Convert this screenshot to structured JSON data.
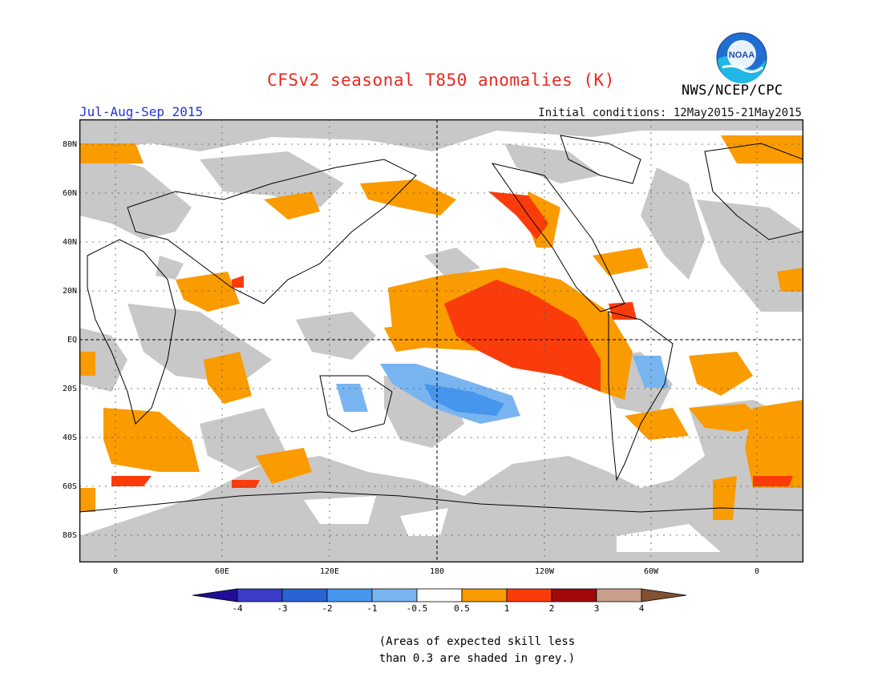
{
  "header": {
    "title": "CFSv2 seasonal T850 anomalies (K)",
    "period": "Jul-Aug-Sep 2015",
    "initial_conditions": "Initial conditions: 12May2015-21May2015",
    "agency": "NWS/NCEP/CPC",
    "logo_text": "NOAA"
  },
  "map": {
    "lat_labels": [
      "80N",
      "60N",
      "40N",
      "20N",
      "EQ",
      "20S",
      "40S",
      "60S",
      "80S"
    ],
    "lon_labels": [
      "0",
      "60E",
      "120E",
      "180",
      "120W",
      "60W",
      "0"
    ],
    "colors": {
      "grey_mask": "#c8c8c8",
      "neutral": "#ffffff",
      "warm_05_1": "#fa9b00",
      "warm_1_2": "#fa3c0a",
      "cool_m1_m05": "#78b4f0",
      "cool_m2_m1": "#4696ee"
    }
  },
  "colorbar": {
    "labels": [
      "-4",
      "-3",
      "-2",
      "-1",
      "-0.5",
      "0.5",
      "1",
      "2",
      "3",
      "4"
    ],
    "colors": [
      "#1e0f96",
      "#3c3cc8",
      "#2864d2",
      "#4696ee",
      "#78b4f0",
      "#ffffff",
      "#fa9b00",
      "#fa3c0a",
      "#a00a0a",
      "#c8a08c",
      "#825032"
    ]
  },
  "note": {
    "line1": "(Areas of expected skill less",
    "line2": "than 0.3 are shaded in grey.)"
  }
}
